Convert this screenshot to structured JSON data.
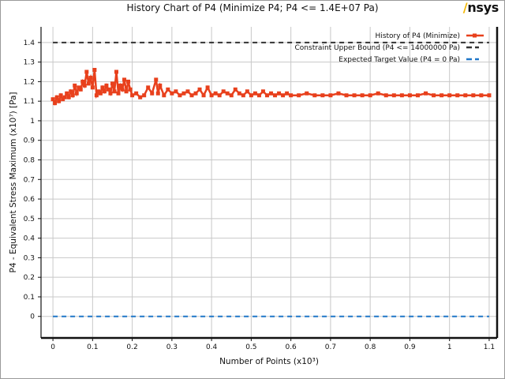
{
  "window": {
    "title": "History Chart of P4 (Minimize P4; P4 <= 1.4E+07 Pa)",
    "brand": "Ansys"
  },
  "chart_data": {
    "type": "line",
    "title": "History Chart of P4 (Minimize P4; P4 <= 1.4E+07 Pa)",
    "xlabel": "Number of Points  (x10³)",
    "ylabel": "P4 - Equivalent Stress Maximum  (x10⁷)  [Pa]",
    "xlim": [
      -0.03,
      1.12
    ],
    "ylim": [
      -0.11,
      1.48
    ],
    "x_ticks": [
      0,
      0.1,
      0.2,
      0.3,
      0.4,
      0.5,
      0.6,
      0.7,
      0.8,
      0.9,
      1,
      1.1
    ],
    "x_tick_labels": [
      "0",
      "0.1",
      "0.2",
      "0.3",
      "0.4",
      "0.5",
      "0.6",
      "0.7",
      "0.8",
      "0.9",
      "1",
      "1.1"
    ],
    "y_ticks": [
      0,
      0.1,
      0.2,
      0.3,
      0.4,
      0.5,
      0.6,
      0.7,
      0.8,
      0.9,
      1,
      1.1,
      1.2,
      1.3,
      1.4
    ],
    "y_tick_labels": [
      "0",
      "0.1",
      "0.2",
      "0.3",
      "0.4",
      "0.5",
      "0.6",
      "0.7",
      "0.8",
      "0.9",
      "1",
      "1.1",
      "1.2",
      "1.3",
      "1.4"
    ],
    "grid": true,
    "legend_position": "top-right",
    "series": [
      {
        "name": "History of P4 (Minimize)",
        "color": "#e8401c",
        "style": "solid-markers",
        "x": [
          0,
          0.005,
          0.01,
          0.015,
          0.02,
          0.025,
          0.03,
          0.035,
          0.04,
          0.045,
          0.05,
          0.055,
          0.06,
          0.065,
          0.07,
          0.075,
          0.08,
          0.085,
          0.09,
          0.095,
          0.1,
          0.105,
          0.11,
          0.115,
          0.12,
          0.125,
          0.13,
          0.135,
          0.14,
          0.145,
          0.15,
          0.155,
          0.16,
          0.165,
          0.17,
          0.175,
          0.18,
          0.185,
          0.19,
          0.195,
          0.2,
          0.21,
          0.22,
          0.23,
          0.24,
          0.25,
          0.26,
          0.265,
          0.27,
          0.28,
          0.29,
          0.3,
          0.31,
          0.32,
          0.33,
          0.34,
          0.35,
          0.36,
          0.37,
          0.38,
          0.39,
          0.4,
          0.41,
          0.42,
          0.43,
          0.44,
          0.45,
          0.46,
          0.47,
          0.48,
          0.49,
          0.5,
          0.51,
          0.52,
          0.53,
          0.54,
          0.55,
          0.56,
          0.57,
          0.58,
          0.59,
          0.6,
          0.62,
          0.64,
          0.66,
          0.68,
          0.7,
          0.72,
          0.74,
          0.76,
          0.78,
          0.8,
          0.82,
          0.84,
          0.86,
          0.88,
          0.9,
          0.92,
          0.94,
          0.96,
          0.98,
          1.0,
          1.02,
          1.04,
          1.06,
          1.08,
          1.1
        ],
        "y": [
          1.11,
          1.09,
          1.12,
          1.1,
          1.13,
          1.11,
          1.12,
          1.14,
          1.12,
          1.15,
          1.13,
          1.18,
          1.14,
          1.17,
          1.16,
          1.2,
          1.18,
          1.25,
          1.19,
          1.22,
          1.17,
          1.26,
          1.13,
          1.15,
          1.14,
          1.17,
          1.15,
          1.18,
          1.16,
          1.14,
          1.19,
          1.15,
          1.25,
          1.14,
          1.18,
          1.16,
          1.21,
          1.15,
          1.2,
          1.16,
          1.13,
          1.14,
          1.12,
          1.13,
          1.17,
          1.14,
          1.21,
          1.14,
          1.18,
          1.13,
          1.16,
          1.14,
          1.15,
          1.13,
          1.14,
          1.15,
          1.13,
          1.14,
          1.16,
          1.13,
          1.17,
          1.13,
          1.14,
          1.13,
          1.15,
          1.14,
          1.13,
          1.16,
          1.14,
          1.13,
          1.15,
          1.13,
          1.14,
          1.13,
          1.15,
          1.13,
          1.14,
          1.13,
          1.14,
          1.13,
          1.14,
          1.13,
          1.13,
          1.14,
          1.13,
          1.13,
          1.13,
          1.14,
          1.13,
          1.13,
          1.13,
          1.13,
          1.14,
          1.13,
          1.13,
          1.13,
          1.13,
          1.13,
          1.14,
          1.13,
          1.13,
          1.13,
          1.13,
          1.13,
          1.13,
          1.13,
          1.13
        ]
      },
      {
        "name": "Constraint Upper Bound (P4 <= 14000000 Pa)",
        "color": "#333333",
        "style": "dashed",
        "x": [
          0,
          1.1
        ],
        "y": [
          1.4,
          1.4
        ]
      },
      {
        "name": "Expected Target Value (P4 = 0 Pa)",
        "color": "#1f77c8",
        "style": "dashed",
        "x": [
          0,
          1.1
        ],
        "y": [
          0,
          0
        ]
      }
    ]
  }
}
